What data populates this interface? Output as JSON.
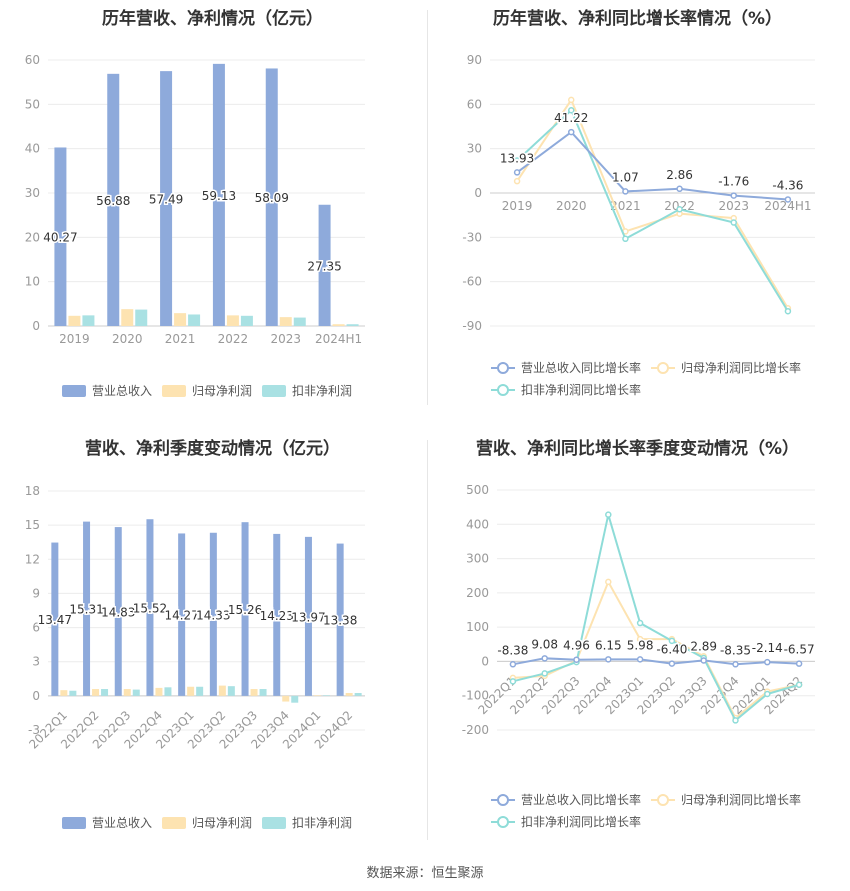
{
  "footer": "数据来源：恒生聚源",
  "colors": {
    "revenue": "#8eaadb",
    "net_profit": "#fde3b1",
    "deducted_profit": "#a9e1e3",
    "revenue_line": "#8eaadb",
    "net_profit_line": "#fde3b1",
    "deducted_profit_line": "#8edcd8",
    "axis_text": "#999999",
    "label_text": "#333333"
  },
  "chart_data": [
    {
      "type": "bar",
      "title": "历年营收、净利情况（亿元）",
      "categories": [
        "2019",
        "2020",
        "2021",
        "2022",
        "2023",
        "2024H1"
      ],
      "ylim": [
        0,
        60
      ],
      "yticks": [
        0,
        10,
        20,
        30,
        40,
        50,
        60
      ],
      "series": [
        {
          "name": "营业总收入",
          "values": [
            40.27,
            56.88,
            57.49,
            59.13,
            58.09,
            27.35
          ]
        },
        {
          "name": "归母净利润",
          "values": [
            2.3,
            3.8,
            2.9,
            2.4,
            2.0,
            0.4
          ]
        },
        {
          "name": "扣非净利润",
          "values": [
            2.4,
            3.7,
            2.6,
            2.3,
            1.9,
            0.4
          ]
        }
      ],
      "data_labels": [
        "40.27",
        "56.88",
        "57.49",
        "59.13",
        "58.09",
        "27.35"
      ],
      "legend": "bottom"
    },
    {
      "type": "line",
      "title": "历年营收、净利同比增长率情况（%）",
      "categories": [
        "2019",
        "2020",
        "2021",
        "2022",
        "2023",
        "2024H1"
      ],
      "ylim": [
        -90,
        90
      ],
      "yticks": [
        -90,
        -60,
        -30,
        0,
        30,
        60,
        90
      ],
      "series": [
        {
          "name": "营业总收入同比增长率",
          "values": [
            13.93,
            41.22,
            1.07,
            2.86,
            -1.76,
            -4.36
          ]
        },
        {
          "name": "归母净利润同比增长率",
          "values": [
            8,
            63,
            -26,
            -14,
            -17,
            -78
          ]
        },
        {
          "name": "扣非净利润同比增长率",
          "values": [
            22,
            56,
            -31,
            -11,
            -20,
            -80
          ]
        }
      ],
      "data_labels": [
        "13.93",
        "41.22",
        "1.07",
        "2.86",
        "-1.76",
        "-4.36"
      ],
      "legend": "bottom"
    },
    {
      "type": "bar",
      "title": "营收、净利季度变动情况（亿元）",
      "categories": [
        "2022Q1",
        "2022Q2",
        "2022Q3",
        "2022Q4",
        "2023Q1",
        "2023Q2",
        "2023Q3",
        "2023Q4",
        "2024Q1",
        "2024Q2"
      ],
      "ylim": [
        -3,
        18
      ],
      "yticks": [
        -3,
        0,
        3,
        6,
        9,
        12,
        15,
        18
      ],
      "series": [
        {
          "name": "营业总收入",
          "values": [
            13.47,
            15.31,
            14.83,
            15.52,
            14.27,
            14.33,
            15.26,
            14.23,
            13.97,
            13.38
          ]
        },
        {
          "name": "归母净利润",
          "values": [
            0.5,
            0.6,
            0.6,
            0.7,
            0.8,
            0.9,
            0.6,
            -0.5,
            0.05,
            0.25
          ]
        },
        {
          "name": "扣非净利润",
          "values": [
            0.45,
            0.6,
            0.55,
            0.75,
            0.8,
            0.85,
            0.6,
            -0.6,
            0.05,
            0.25
          ]
        }
      ],
      "data_labels": [
        "13.47",
        "15.31",
        "14.83",
        "15.52",
        "14.27",
        "14.33",
        "15.26",
        "14.23",
        "13.97",
        "13.38"
      ],
      "legend": "bottom"
    },
    {
      "type": "line",
      "title": "营收、净利同比增长率季度变动情况（%）",
      "categories": [
        "2022Q1",
        "2022Q2",
        "2022Q3",
        "2022Q4",
        "2023Q1",
        "2023Q2",
        "2023Q3",
        "2023Q4",
        "2024Q1",
        "2024Q2"
      ],
      "ylim": [
        -200,
        500
      ],
      "yticks": [
        -200,
        -100,
        0,
        100,
        200,
        300,
        400,
        500
      ],
      "series": [
        {
          "name": "营业总收入同比增长率",
          "values": [
            -8.38,
            9.08,
            4.96,
            6.15,
            5.98,
            -6.4,
            2.89,
            -8.35,
            -2.14,
            -6.57
          ]
        },
        {
          "name": "归母净利润同比增长率",
          "values": [
            -48,
            -42,
            2,
            232,
            65,
            65,
            15,
            -165,
            -88,
            -68
          ]
        },
        {
          "name": "扣非净利润同比增长率",
          "values": [
            -58,
            -35,
            -2,
            428,
            112,
            60,
            10,
            -172,
            -95,
            -68
          ]
        }
      ],
      "data_labels": [
        "-8.38",
        "9.08",
        "4.96",
        "6.15",
        "5.98",
        "-6.40",
        "2.89",
        "-8.35",
        "-2.14",
        "-6.57"
      ],
      "legend": "bottom"
    }
  ]
}
